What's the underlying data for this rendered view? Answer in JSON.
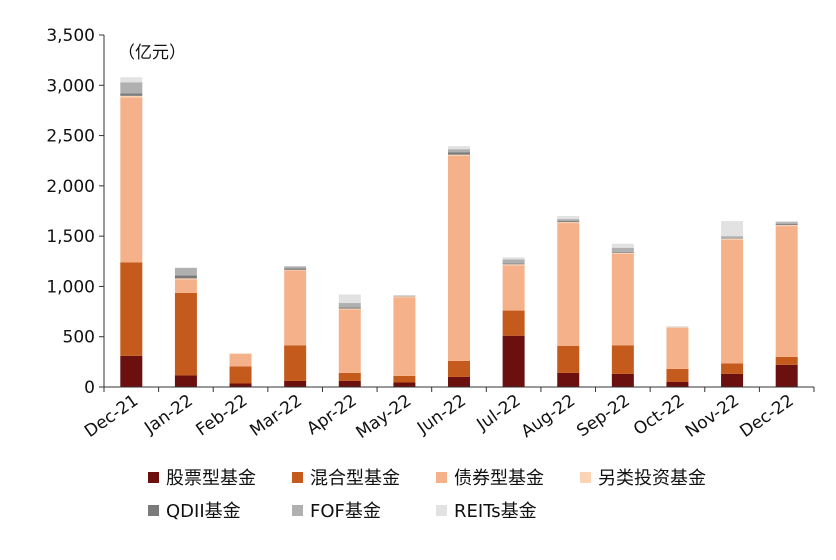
{
  "chart_data": {
    "type": "bar",
    "stacked": true,
    "unit_label": "（亿元）",
    "categories": [
      "Dec-21",
      "Jan-22",
      "Feb-22",
      "Mar-22",
      "Apr-22",
      "May-22",
      "Jun-22",
      "Jul-22",
      "Aug-22",
      "Sep-22",
      "Oct-22",
      "Nov-22",
      "Dec-22"
    ],
    "y_ticks": [
      "0",
      "500",
      "1,000",
      "1,500",
      "2,000",
      "2,500",
      "3,000",
      "3,500"
    ],
    "ylim": [
      0,
      3500
    ],
    "grid": false,
    "legend_position": "bottom",
    "series": [
      {
        "name": "股票型基金",
        "color": "#6b0f0f",
        "values": [
          310,
          115,
          35,
          60,
          60,
          45,
          100,
          510,
          140,
          130,
          50,
          130,
          220
        ]
      },
      {
        "name": "混合型基金",
        "color": "#c55a1d",
        "values": [
          930,
          820,
          170,
          355,
          80,
          65,
          160,
          250,
          270,
          285,
          130,
          105,
          80
        ]
      },
      {
        "name": "债券型基金",
        "color": "#f5b28a",
        "values": [
          1640,
          135,
          125,
          745,
          630,
          780,
          2040,
          450,
          1220,
          910,
          410,
          1230,
          1300
        ]
      },
      {
        "name": "另类投资基金",
        "color": "#fbd3b5",
        "values": [
          15,
          10,
          5,
          5,
          10,
          10,
          10,
          10,
          10,
          10,
          5,
          10,
          10
        ]
      },
      {
        "name": "QDII基金",
        "color": "#7a7a7a",
        "values": [
          25,
          30,
          0,
          15,
          10,
          0,
          25,
          10,
          10,
          10,
          0,
          5,
          10
        ]
      },
      {
        "name": "FOF基金",
        "color": "#b0b0b0",
        "values": [
          110,
          75,
          0,
          20,
          45,
          10,
          30,
          40,
          20,
          40,
          5,
          20,
          20
        ]
      },
      {
        "name": "REITs基金",
        "color": "#e2e2e2",
        "values": [
          50,
          0,
          0,
          0,
          85,
          0,
          30,
          20,
          30,
          40,
          0,
          150,
          10
        ]
      }
    ]
  }
}
